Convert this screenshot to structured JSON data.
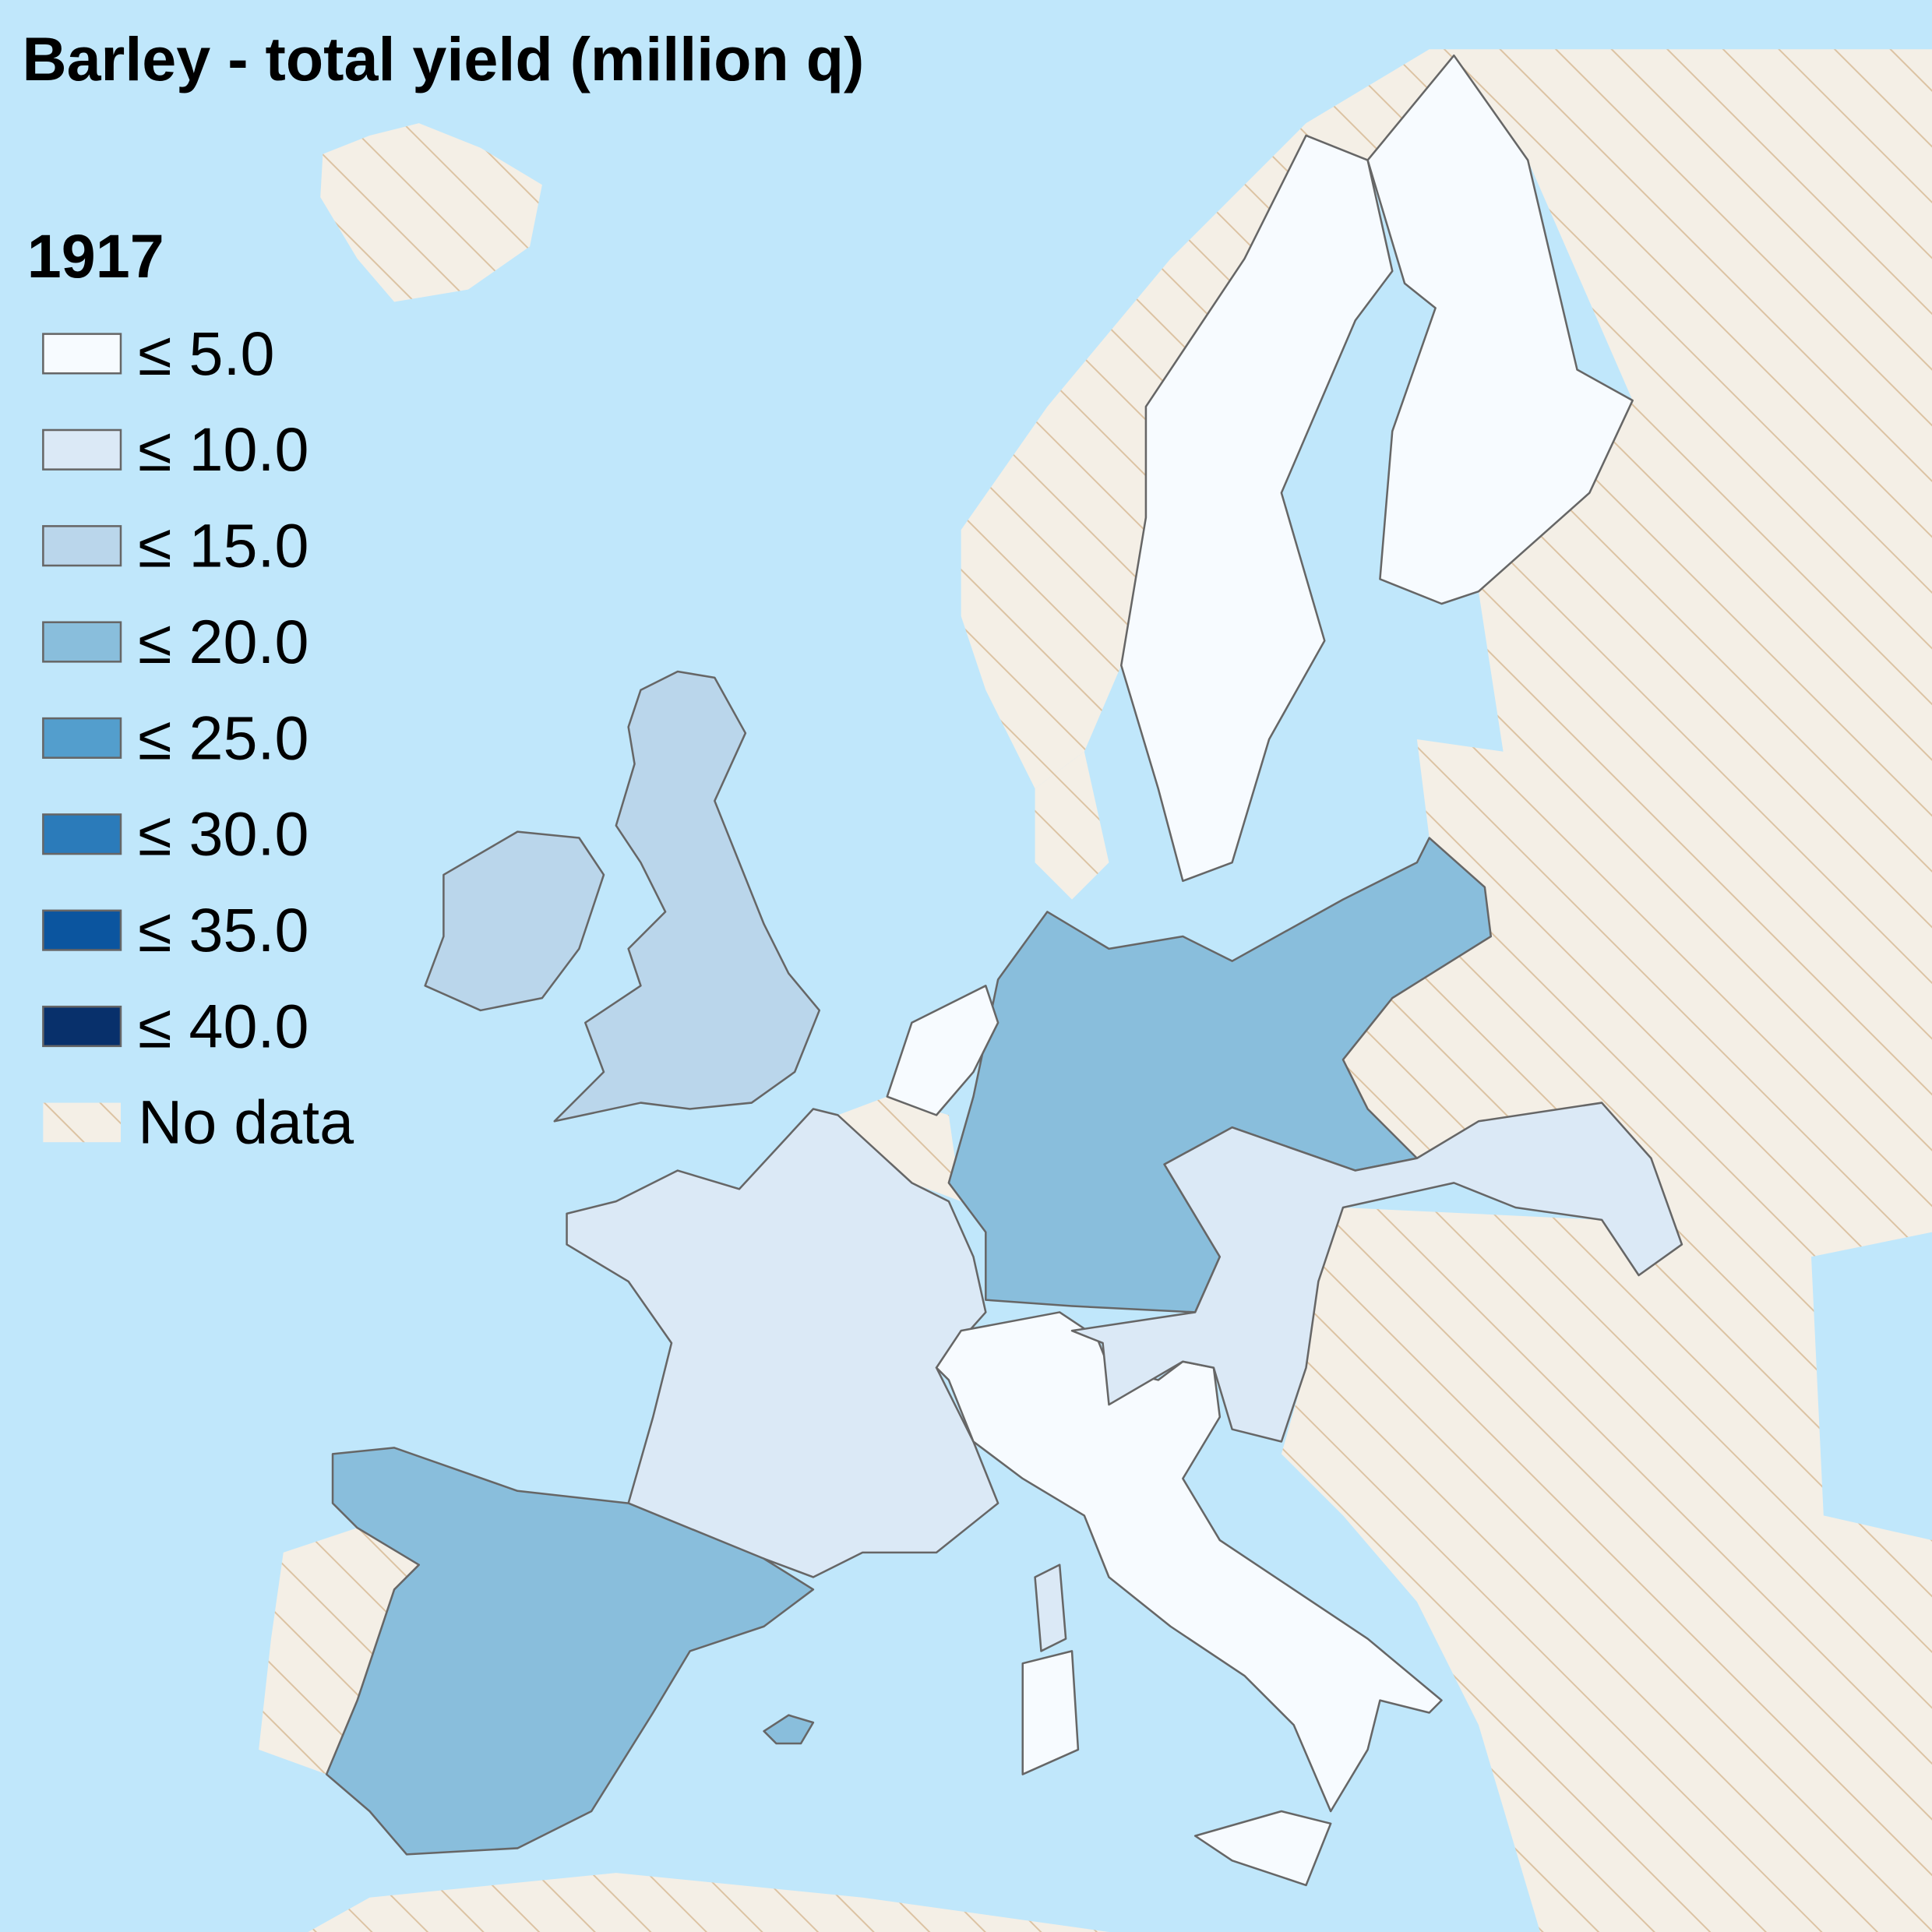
{
  "title": "Barley - total yield (million q)",
  "year": "1917",
  "legend": [
    {
      "label": "≤ 5.0",
      "color": "#f7fbff"
    },
    {
      "label": "≤ 10.0",
      "color": "#dbe9f6"
    },
    {
      "label": "≤ 15.0",
      "color": "#bad6eb"
    },
    {
      "label": "≤ 20.0",
      "color": "#89bedc"
    },
    {
      "label": "≤ 25.0",
      "color": "#539ecd"
    },
    {
      "label": "≤ 30.0",
      "color": "#2b7bba"
    },
    {
      "label": "≤ 35.0",
      "color": "#0b559f"
    },
    {
      "label": "≤ 40.0",
      "color": "#08306b"
    },
    {
      "label": "No data",
      "color": "#f4efe6"
    }
  ]
}
